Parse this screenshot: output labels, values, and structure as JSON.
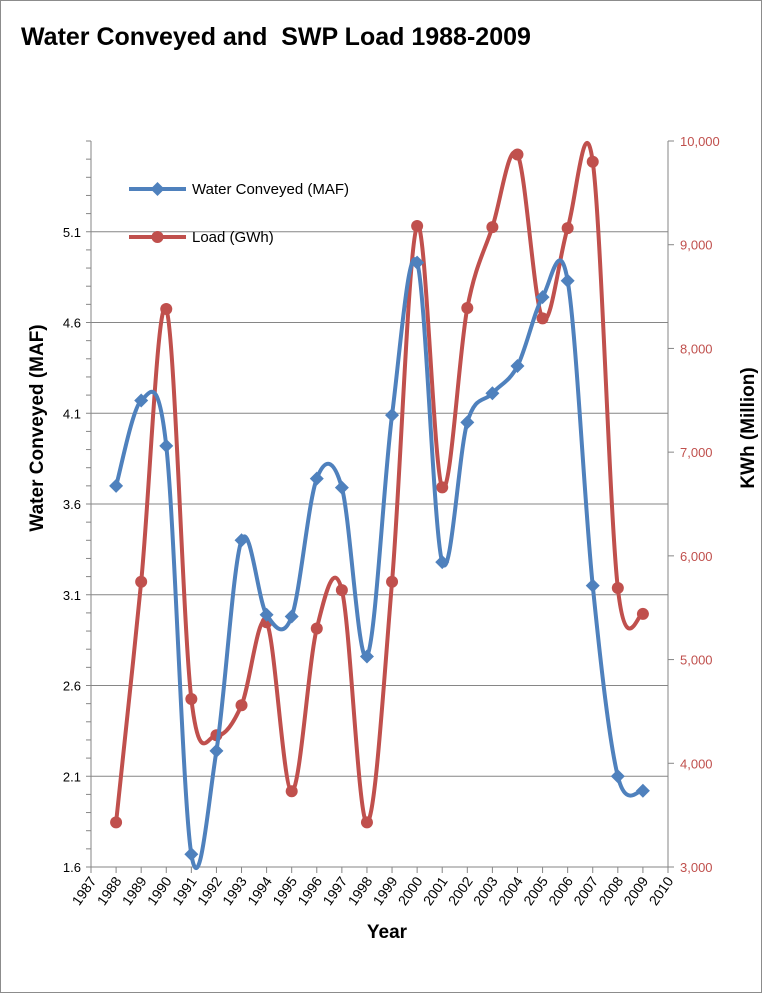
{
  "chart_data": {
    "type": "line",
    "title": "Water Conveyed and  SWP Load 1988-2009",
    "xlabel": "Year",
    "ylabel": "Water Conveyed (MAF)",
    "y2label": "KWh (Million)",
    "x_ticks": [
      "1987",
      "1988",
      "1989",
      "1990",
      "1991",
      "1992",
      "1993",
      "1994",
      "1995",
      "1996",
      "1997",
      "1998",
      "1999",
      "2000",
      "2001",
      "2002",
      "2003",
      "2004",
      "2005",
      "2006",
      "2007",
      "2008",
      "2009",
      "2010"
    ],
    "y_ticks": [
      "1.6",
      "2.1",
      "2.6",
      "3.1",
      "3.6",
      "4.1",
      "4.6",
      "5.1"
    ],
    "y2_ticks": [
      "3,000",
      "4,000",
      "5,000",
      "6,000",
      "7,000",
      "8,000",
      "9,000",
      "10,000"
    ],
    "xlim": [
      1987,
      2010
    ],
    "ylim": [
      1.6,
      5.6
    ],
    "y2lim": [
      3000,
      10000
    ],
    "grid": "horizontal",
    "legend_position": "top-left",
    "series": [
      {
        "name": "Water Conveyed (MAF)",
        "axis": "left",
        "color": "#4f81bd",
        "marker": "diamond",
        "x": [
          1988,
          1989,
          1990,
          1991,
          1992,
          1993,
          1994,
          1995,
          1996,
          1997,
          1998,
          1999,
          2000,
          2001,
          2002,
          2003,
          2004,
          2005,
          2006,
          2007,
          2008,
          2009
        ],
        "values": [
          3.7,
          4.17,
          3.92,
          1.67,
          2.24,
          3.4,
          2.99,
          2.98,
          3.74,
          3.69,
          2.76,
          4.09,
          4.93,
          3.28,
          4.05,
          4.21,
          4.36,
          4.74,
          4.83,
          3.15,
          2.1,
          2.02
        ]
      },
      {
        "name": "Load (GWh)",
        "axis": "right",
        "color": "#c0504d",
        "marker": "circle",
        "x": [
          1988,
          1989,
          1990,
          1991,
          1992,
          1993,
          1994,
          1995,
          1996,
          1997,
          1998,
          1999,
          2000,
          2001,
          2002,
          2003,
          2004,
          2005,
          2006,
          2007,
          2008,
          2009
        ],
        "values": [
          3430,
          5750,
          8380,
          4620,
          4270,
          4560,
          5360,
          3730,
          5300,
          5670,
          3430,
          5750,
          9180,
          6660,
          8390,
          9170,
          9870,
          8290,
          9160,
          9800,
          5690,
          5440
        ]
      }
    ]
  }
}
